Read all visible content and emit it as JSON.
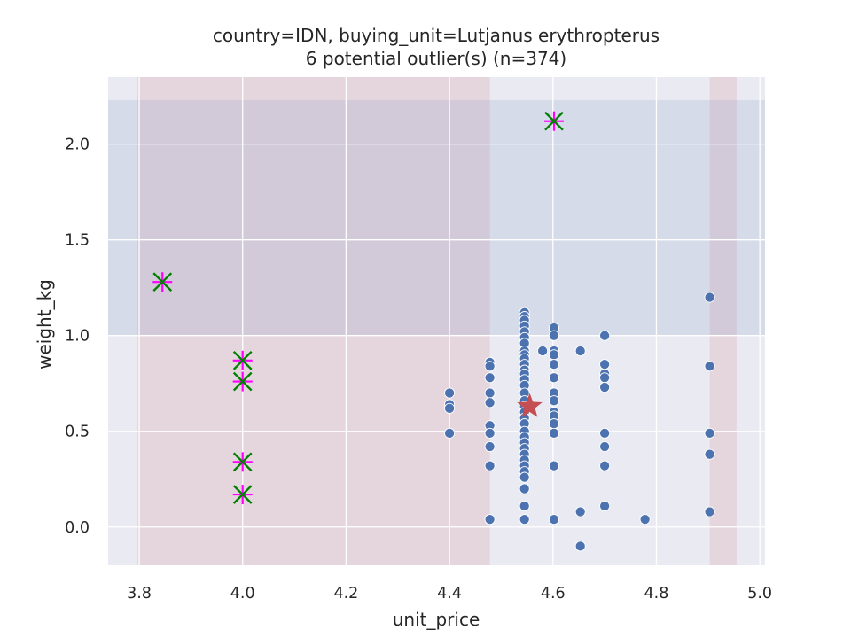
{
  "chart_data": {
    "type": "scatter",
    "title": "country=IDN, buying_unit=Lutjanus erythropterus",
    "subtitle": "6 potential outlier(s) (n=374)",
    "xlabel": "unit_price",
    "ylabel": "weight_kg",
    "xlim": [
      3.74,
      5.01
    ],
    "ylim": [
      -0.2,
      2.35
    ],
    "xticks": [
      3.8,
      4.0,
      4.2,
      4.4,
      4.6,
      4.8,
      5.0
    ],
    "xtick_labels": [
      "3.8",
      "4.0",
      "4.2",
      "4.4",
      "4.6",
      "4.8",
      "5.0"
    ],
    "yticks": [
      0.0,
      0.5,
      1.0,
      1.5,
      2.0
    ],
    "ytick_labels": [
      "0.0",
      "0.5",
      "1.0",
      "1.5",
      "2.0"
    ],
    "grid": true,
    "colors": {
      "background": "#eaeaf2",
      "points": "#4c72b0",
      "center_star": "#c44e52",
      "outlier_x": "#008000",
      "outlier_plus": "#ff00ff",
      "band_x": "#c44e52",
      "band_y": "#4c72b0"
    },
    "shaded_x_ranges": [
      [
        3.795,
        4.478
      ],
      [
        4.903,
        4.955
      ]
    ],
    "shaded_y_range": [
      1.0,
      2.23
    ],
    "center": {
      "x": 4.555,
      "y": 0.63
    },
    "series": [
      {
        "points": [
          [
            4.4,
            0.7
          ],
          [
            4.4,
            0.64
          ],
          [
            4.4,
            0.62
          ],
          [
            4.4,
            0.49
          ],
          [
            4.478,
            0.86
          ],
          [
            4.478,
            0.84
          ],
          [
            4.478,
            0.78
          ],
          [
            4.478,
            0.7
          ],
          [
            4.478,
            0.65
          ],
          [
            4.478,
            0.53
          ],
          [
            4.478,
            0.49
          ],
          [
            4.478,
            0.42
          ],
          [
            4.478,
            0.32
          ],
          [
            4.478,
            0.04
          ],
          [
            4.545,
            1.12
          ],
          [
            4.545,
            1.1
          ],
          [
            4.545,
            1.08
          ],
          [
            4.545,
            1.05
          ],
          [
            4.545,
            1.02
          ],
          [
            4.545,
            0.99
          ],
          [
            4.545,
            0.96
          ],
          [
            4.545,
            0.92
          ],
          [
            4.545,
            0.9
          ],
          [
            4.545,
            0.88
          ],
          [
            4.545,
            0.85
          ],
          [
            4.545,
            0.82
          ],
          [
            4.545,
            0.8
          ],
          [
            4.545,
            0.77
          ],
          [
            4.545,
            0.74
          ],
          [
            4.545,
            0.7
          ],
          [
            4.545,
            0.66
          ],
          [
            4.545,
            0.63
          ],
          [
            4.545,
            0.6
          ],
          [
            4.545,
            0.57
          ],
          [
            4.545,
            0.54
          ],
          [
            4.545,
            0.5
          ],
          [
            4.545,
            0.47
          ],
          [
            4.545,
            0.44
          ],
          [
            4.545,
            0.41
          ],
          [
            4.545,
            0.38
          ],
          [
            4.545,
            0.35
          ],
          [
            4.545,
            0.32
          ],
          [
            4.545,
            0.29
          ],
          [
            4.545,
            0.26
          ],
          [
            4.545,
            0.2
          ],
          [
            4.545,
            0.11
          ],
          [
            4.545,
            0.04
          ],
          [
            4.58,
            0.92
          ],
          [
            4.602,
            1.04
          ],
          [
            4.602,
            1.0
          ],
          [
            4.602,
            0.92
          ],
          [
            4.602,
            0.9
          ],
          [
            4.602,
            0.85
          ],
          [
            4.602,
            0.78
          ],
          [
            4.602,
            0.7
          ],
          [
            4.602,
            0.66
          ],
          [
            4.602,
            0.6
          ],
          [
            4.602,
            0.58
          ],
          [
            4.602,
            0.54
          ],
          [
            4.602,
            0.49
          ],
          [
            4.602,
            0.32
          ],
          [
            4.602,
            0.04
          ],
          [
            4.653,
            0.92
          ],
          [
            4.653,
            0.08
          ],
          [
            4.653,
            -0.1
          ],
          [
            4.7,
            1.0
          ],
          [
            4.7,
            0.85
          ],
          [
            4.7,
            0.8
          ],
          [
            4.7,
            0.78
          ],
          [
            4.7,
            0.73
          ],
          [
            4.7,
            0.49
          ],
          [
            4.7,
            0.42
          ],
          [
            4.7,
            0.32
          ],
          [
            4.7,
            0.11
          ],
          [
            4.778,
            0.04
          ],
          [
            4.903,
            1.2
          ],
          [
            4.903,
            0.84
          ],
          [
            4.903,
            0.49
          ],
          [
            4.903,
            0.38
          ],
          [
            4.903,
            0.08
          ]
        ]
      }
    ],
    "outliers": [
      [
        3.845,
        1.28
      ],
      [
        4.0,
        0.87
      ],
      [
        4.0,
        0.76
      ],
      [
        4.0,
        0.34
      ],
      [
        4.0,
        0.17
      ],
      [
        4.602,
        2.12
      ]
    ]
  }
}
